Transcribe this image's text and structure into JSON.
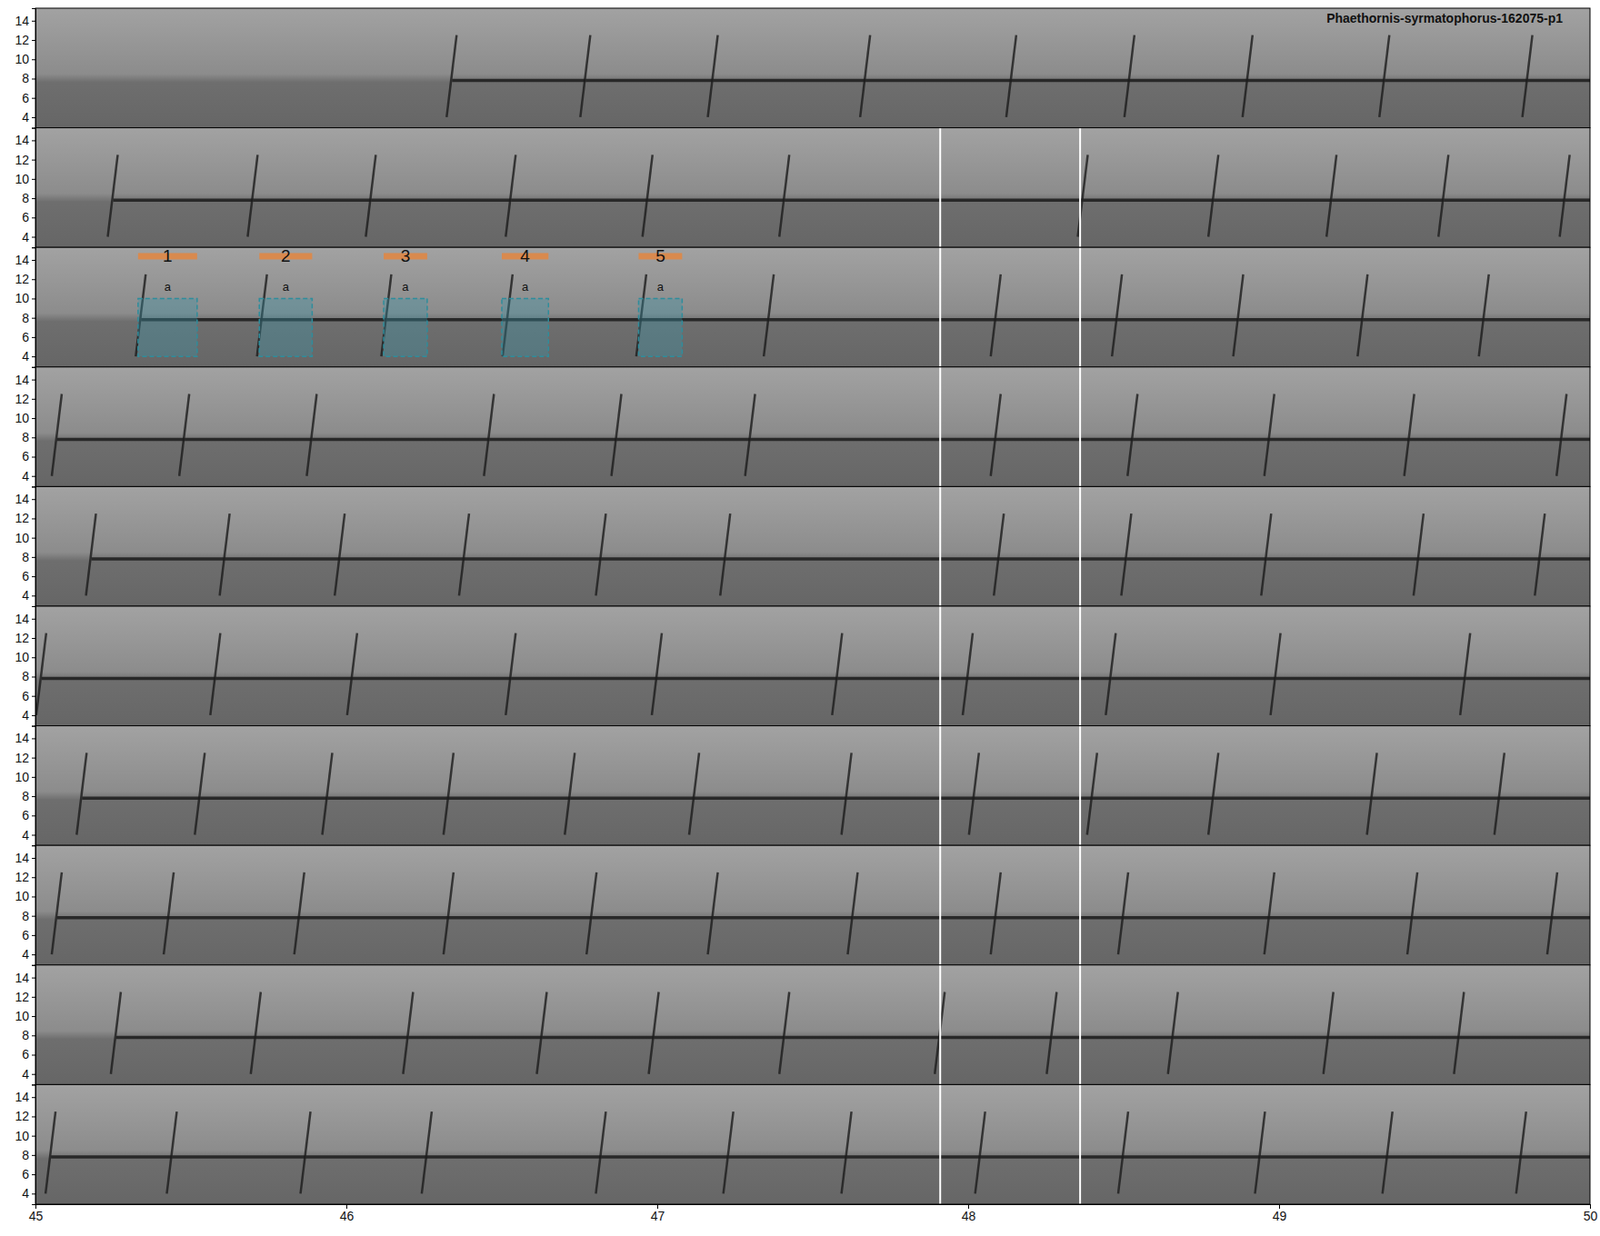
{
  "chart_data": {
    "type": "spectrogram",
    "title": "Phaethornis-syrmatophorus-162075-p1",
    "xlim": [
      45,
      50
    ],
    "xticks": [
      45,
      46,
      47,
      48,
      49,
      50
    ],
    "ylim": [
      2.9,
      15.3
    ],
    "yticks": [
      4,
      6,
      8,
      10,
      12,
      14
    ],
    "tone_frequency": 7.8,
    "sweep_range": [
      4,
      12.5
    ],
    "color": "#1c1c1c",
    "rows": [
      {
        "onsets": [
          46.34,
          46.77,
          47.18,
          47.67,
          48.14,
          48.52,
          48.9,
          49.34,
          49.8
        ],
        "dividers": [],
        "annotations": []
      },
      {
        "onsets": [
          45.25,
          45.7,
          46.08,
          46.53,
          46.97,
          47.41,
          48.37,
          48.79,
          49.17,
          49.53,
          49.92
        ],
        "dividers": [
          47.91,
          48.36
        ],
        "annotations": []
      },
      {
        "onsets": [
          45.34,
          45.73,
          46.13,
          46.52,
          46.95,
          47.36,
          48.09,
          48.48,
          48.87,
          49.27,
          49.66
        ],
        "dividers": [
          47.91,
          48.36
        ],
        "annotations": [
          {
            "label": "1",
            "tag": "a",
            "xlim": [
              45.33,
              45.52
            ],
            "ylim": [
              4,
              10
            ]
          },
          {
            "label": "2",
            "tag": "a",
            "xlim": [
              45.72,
              45.89
            ],
            "ylim": [
              4,
              10
            ]
          },
          {
            "label": "3",
            "tag": "a",
            "xlim": [
              46.12,
              46.26
            ],
            "ylim": [
              4,
              10
            ]
          },
          {
            "label": "4",
            "tag": "a",
            "xlim": [
              46.5,
              46.65
            ],
            "ylim": [
              4,
              10
            ]
          },
          {
            "label": "5",
            "tag": "a",
            "xlim": [
              46.94,
              47.08
            ],
            "ylim": [
              4,
              10
            ]
          }
        ]
      },
      {
        "onsets": [
          45.07,
          45.48,
          45.89,
          46.46,
          46.87,
          47.3,
          48.09,
          48.53,
          48.97,
          49.42,
          49.91
        ],
        "dividers": [
          47.91,
          48.36
        ],
        "annotations": []
      },
      {
        "onsets": [
          45.18,
          45.61,
          45.98,
          46.38,
          46.82,
          47.22,
          48.1,
          48.51,
          48.96,
          49.45,
          49.84
        ],
        "dividers": [
          47.91,
          48.36
        ],
        "annotations": []
      },
      {
        "onsets": [
          45.02,
          45.58,
          46.02,
          46.53,
          47.0,
          47.58,
          48.0,
          48.46,
          48.99,
          49.6
        ],
        "dividers": [
          47.91,
          48.36
        ],
        "annotations": []
      },
      {
        "onsets": [
          45.15,
          45.53,
          45.94,
          46.33,
          46.72,
          47.12,
          47.61,
          48.02,
          48.4,
          48.79,
          49.3,
          49.71
        ],
        "dividers": [
          47.91,
          48.36
        ],
        "annotations": []
      },
      {
        "onsets": [
          45.07,
          45.43,
          45.85,
          46.33,
          46.79,
          47.18,
          47.63,
          48.09,
          48.5,
          48.97,
          49.43,
          49.88
        ],
        "dividers": [
          47.91,
          48.36
        ],
        "annotations": []
      },
      {
        "onsets": [
          45.26,
          45.71,
          46.2,
          46.63,
          46.99,
          47.41,
          47.91,
          48.27,
          48.66,
          49.16,
          49.58
        ],
        "dividers": [
          47.91,
          48.36
        ],
        "annotations": []
      },
      {
        "onsets": [
          45.05,
          45.44,
          45.87,
          46.26,
          46.82,
          47.23,
          47.61,
          48.04,
          48.5,
          48.94,
          49.35,
          49.78
        ],
        "dividers": [
          47.91,
          48.36
        ],
        "annotations": []
      }
    ]
  }
}
